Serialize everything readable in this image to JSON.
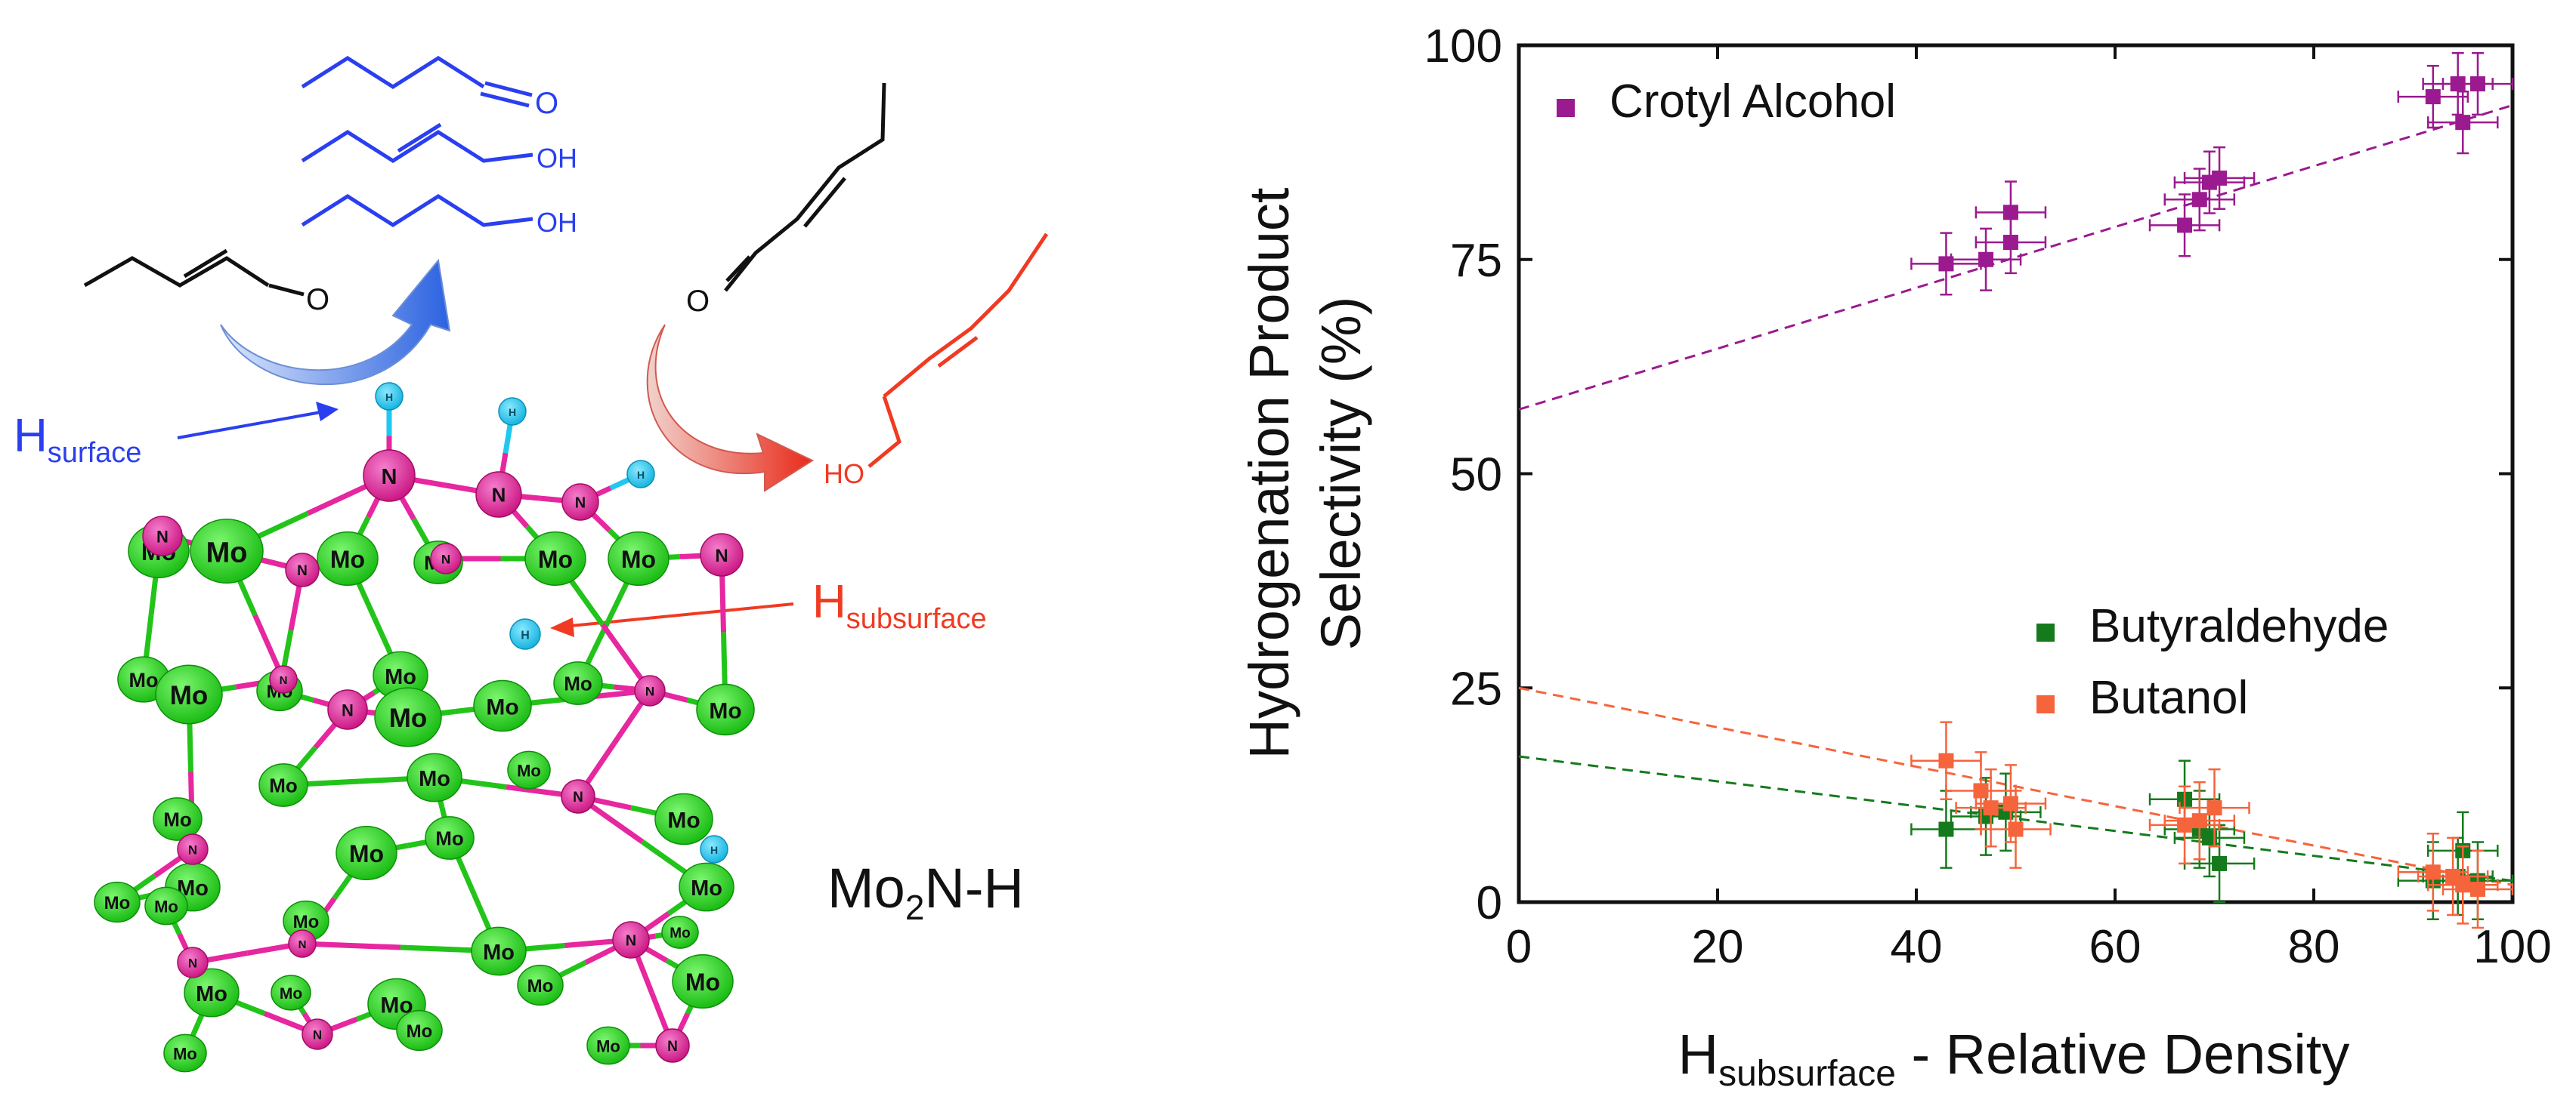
{
  "scheme": {
    "h_surface_main": "H",
    "h_surface_sub": "surface",
    "h_subsurface_main": "H",
    "h_subsurface_sub": "subsurface",
    "formula_main": "Mo",
    "formula_sub": "2",
    "formula_rest": "N-H",
    "label_o": "O",
    "label_oh": "OH",
    "label_ho": "HO",
    "atom_mo": "Mo",
    "atom_n": "N",
    "atom_h": "H",
    "colors": {
      "surface": "#2a3ff0",
      "subsurface": "#f03a22",
      "mo": "#22d11c",
      "n": "#e6279f",
      "h": "#1fc8f0",
      "molecule": "#111111"
    }
  },
  "chart_data": {
    "type": "scatter",
    "ylabel_line1": "Hydrogenation Product",
    "ylabel_line2": "Selectivity (%)",
    "xlabel_main": "H",
    "xlabel_sub": "subsurface",
    "xlabel_rest": " - Relative Density",
    "xlim": [
      0,
      100
    ],
    "ylim": [
      0,
      100
    ],
    "xticks": [
      "0",
      "20",
      "40",
      "60",
      "80",
      "100"
    ],
    "yticks": [
      "0",
      "25",
      "50",
      "75",
      "100"
    ],
    "grid": false,
    "series": [
      {
        "name": "Crotyl Alcohol",
        "color": "#9b1a8f",
        "fit": [
          0,
          57.5,
          100,
          93
        ],
        "points": [
          [
            43,
            74.5
          ],
          [
            47,
            75
          ],
          [
            49.5,
            77
          ],
          [
            49.5,
            80.5
          ],
          [
            67,
            79
          ],
          [
            68.5,
            82
          ],
          [
            69.5,
            84
          ],
          [
            70.5,
            84.5
          ],
          [
            92,
            94
          ],
          [
            94.5,
            95.5
          ],
          [
            95,
            91
          ],
          [
            96.5,
            95.5
          ]
        ]
      },
      {
        "name": "Butyraldehyde",
        "color": "#157a1c",
        "fit": [
          0,
          17,
          100,
          2.5
        ],
        "points": [
          [
            43,
            8.5
          ],
          [
            47,
            10
          ],
          [
            49,
            10.5
          ],
          [
            67,
            12
          ],
          [
            68.5,
            8.5
          ],
          [
            69.5,
            7.5
          ],
          [
            70.5,
            4.5
          ],
          [
            92,
            2.5
          ],
          [
            94.5,
            3
          ],
          [
            95,
            6
          ],
          [
            96.5,
            2.5
          ]
        ]
      },
      {
        "name": "Butanol",
        "color": "#f6643c",
        "fit": [
          0,
          25,
          100,
          2
        ],
        "points": [
          [
            43,
            16.5
          ],
          [
            46.5,
            13
          ],
          [
            47.5,
            11
          ],
          [
            49.5,
            11.5
          ],
          [
            50,
            8.5
          ],
          [
            67,
            9
          ],
          [
            68.5,
            9.5
          ],
          [
            70,
            11
          ],
          [
            92,
            3.5
          ],
          [
            94,
            3
          ],
          [
            95,
            2
          ],
          [
            96.5,
            1.5
          ]
        ]
      }
    ]
  }
}
